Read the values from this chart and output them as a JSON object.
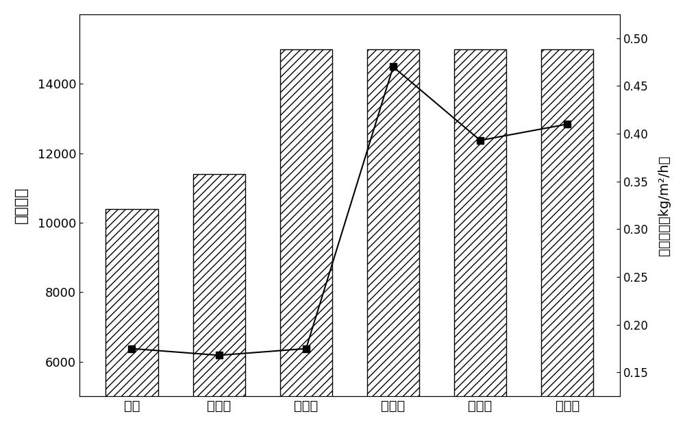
{
  "categories": [
    "乙醇",
    "正丙醇",
    "异丙醇",
    "仲丁醇",
    "异丁醇",
    "叔丁醇"
  ],
  "bar_values": [
    10400,
    11400,
    15000,
    15000,
    15000,
    15000
  ],
  "line_values": [
    0.175,
    0.168,
    0.175,
    0.47,
    0.393,
    0.41
  ],
  "left_ylabel": "分离因子",
  "right_ylabel": "渗透通量（kg/m²/h）",
  "left_ylim": [
    5000,
    16000
  ],
  "left_yticks": [
    6000,
    8000,
    10000,
    12000,
    14000
  ],
  "right_ylim": [
    0.125,
    0.525
  ],
  "right_yticks": [
    0.15,
    0.2,
    0.25,
    0.3,
    0.35,
    0.4,
    0.45,
    0.5
  ],
  "bar_color": "#ffffff",
  "bar_edgecolor": "#000000",
  "line_color": "#000000",
  "marker": "s",
  "marker_size": 7,
  "hatch": "///",
  "bar_width": 0.6,
  "figsize": [
    10.0,
    6.23
  ],
  "dpi": 100,
  "background_color": "#ffffff"
}
